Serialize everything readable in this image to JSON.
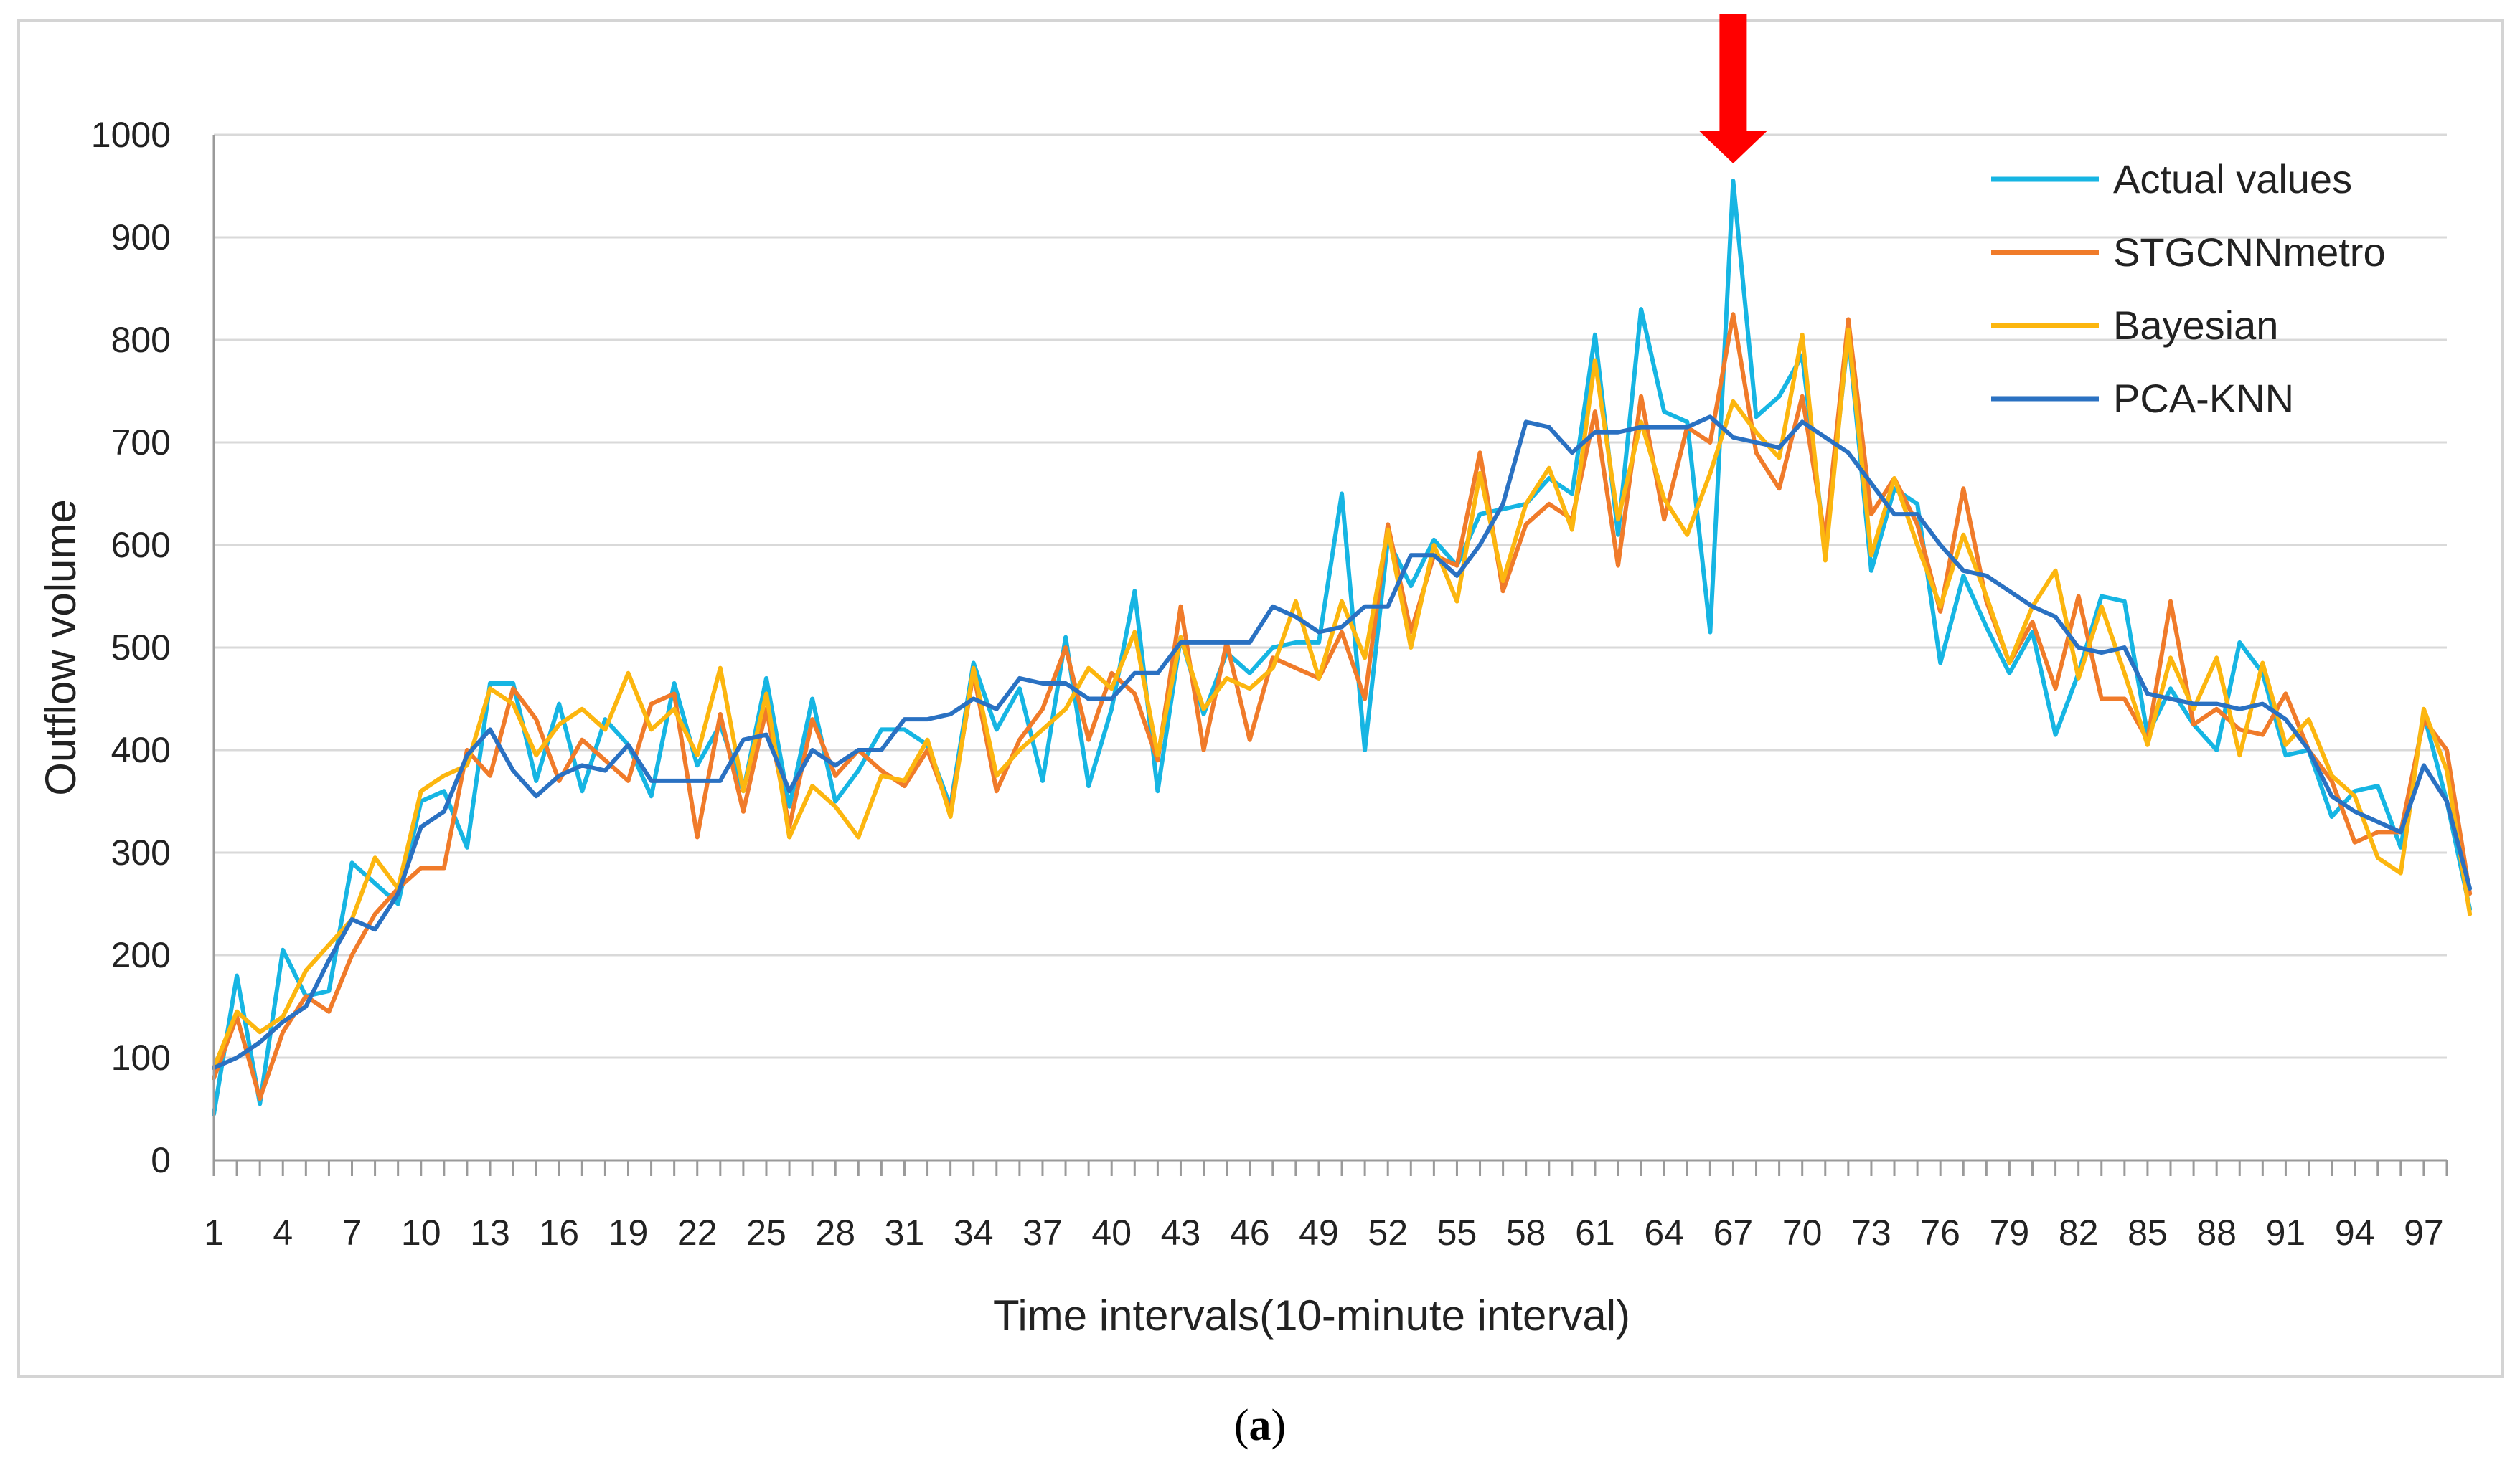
{
  "chart_data": {
    "type": "line",
    "title": "",
    "xlabel": "Time intervals(10-minute interval)",
    "ylabel": "Outflow volume",
    "caption": "(a)",
    "caption_letter": "a",
    "xlim": [
      1,
      98
    ],
    "ylim": [
      0,
      1000
    ],
    "y_ticks": [
      0,
      100,
      200,
      300,
      400,
      500,
      600,
      700,
      800,
      900,
      1000
    ],
    "x_tick_labels": [
      1,
      4,
      7,
      10,
      13,
      16,
      19,
      22,
      25,
      28,
      31,
      34,
      37,
      40,
      43,
      46,
      49,
      52,
      55,
      58,
      61,
      64,
      67,
      70,
      73,
      76,
      79,
      82,
      85,
      88,
      91,
      94,
      97
    ],
    "grid": "horizontal",
    "legend_position": "top-right",
    "annotation": {
      "type": "arrow",
      "x": 67,
      "color": "#ff0000"
    },
    "series": [
      {
        "name": "Actual values",
        "color": "#16b5e3",
        "values": [
          45,
          180,
          55,
          205,
          160,
          165,
          290,
          270,
          250,
          350,
          360,
          305,
          465,
          465,
          370,
          445,
          360,
          430,
          405,
          355,
          465,
          385,
          425,
          360,
          470,
          345,
          450,
          350,
          380,
          420,
          420,
          405,
          345,
          485,
          420,
          460,
          370,
          510,
          365,
          440,
          555,
          360,
          510,
          435,
          495,
          475,
          500,
          505,
          505,
          650,
          400,
          605,
          560,
          605,
          580,
          630,
          635,
          640,
          665,
          650,
          805,
          610,
          830,
          730,
          720,
          515,
          955,
          725,
          745,
          785,
          595,
          805,
          575,
          655,
          640,
          485,
          570,
          520,
          475,
          515,
          415,
          475,
          550,
          545,
          415,
          460,
          425,
          400,
          505,
          475,
          395,
          400,
          335,
          360,
          365,
          305,
          435,
          350,
          245
        ]
      },
      {
        "name": "STGCNNmetro",
        "color": "#f07b2a",
        "values": [
          80,
          140,
          60,
          125,
          160,
          145,
          200,
          240,
          265,
          285,
          285,
          400,
          375,
          460,
          430,
          370,
          410,
          390,
          370,
          445,
          455,
          315,
          435,
          340,
          440,
          325,
          430,
          375,
          400,
          380,
          365,
          400,
          340,
          475,
          360,
          410,
          440,
          500,
          410,
          475,
          455,
          390,
          540,
          400,
          505,
          410,
          490,
          480,
          470,
          515,
          450,
          620,
          515,
          590,
          580,
          690,
          555,
          620,
          640,
          625,
          730,
          580,
          745,
          625,
          715,
          700,
          825,
          690,
          655,
          745,
          605,
          820,
          630,
          665,
          620,
          535,
          655,
          545,
          485,
          525,
          460,
          550,
          450,
          450,
          410,
          545,
          425,
          440,
          420,
          415,
          455,
          400,
          370,
          310,
          320,
          320,
          430,
          400,
          260
        ]
      },
      {
        "name": "Bayesian",
        "color": "#fcb60f",
        "values": [
          90,
          145,
          125,
          140,
          185,
          210,
          235,
          295,
          265,
          360,
          375,
          385,
          460,
          445,
          395,
          425,
          440,
          420,
          475,
          420,
          440,
          395,
          480,
          360,
          455,
          315,
          365,
          345,
          315,
          375,
          370,
          410,
          335,
          480,
          375,
          400,
          420,
          440,
          480,
          460,
          515,
          395,
          510,
          440,
          470,
          460,
          480,
          545,
          470,
          545,
          490,
          615,
          500,
          600,
          545,
          670,
          565,
          640,
          675,
          615,
          780,
          625,
          720,
          645,
          610,
          670,
          740,
          710,
          685,
          805,
          585,
          810,
          590,
          665,
          600,
          540,
          610,
          550,
          485,
          540,
          575,
          470,
          540,
          475,
          405,
          490,
          440,
          490,
          395,
          485,
          405,
          430,
          375,
          355,
          295,
          280,
          440,
          380,
          240
        ]
      },
      {
        "name": "PCA-KNN",
        "color": "#2a71c2",
        "values": [
          90,
          100,
          115,
          135,
          150,
          195,
          235,
          225,
          260,
          325,
          340,
          395,
          420,
          380,
          355,
          375,
          385,
          380,
          405,
          370,
          370,
          370,
          370,
          410,
          415,
          360,
          400,
          385,
          400,
          400,
          430,
          430,
          435,
          450,
          440,
          470,
          465,
          465,
          450,
          450,
          475,
          475,
          505,
          505,
          505,
          505,
          540,
          530,
          515,
          520,
          540,
          540,
          590,
          590,
          570,
          600,
          640,
          720,
          715,
          690,
          710,
          710,
          715,
          715,
          715,
          725,
          705,
          700,
          695,
          720,
          705,
          690,
          660,
          630,
          630,
          600,
          575,
          570,
          555,
          540,
          530,
          500,
          495,
          500,
          455,
          450,
          445,
          445,
          440,
          445,
          430,
          400,
          355,
          340,
          330,
          320,
          385,
          350,
          265
        ]
      }
    ]
  }
}
